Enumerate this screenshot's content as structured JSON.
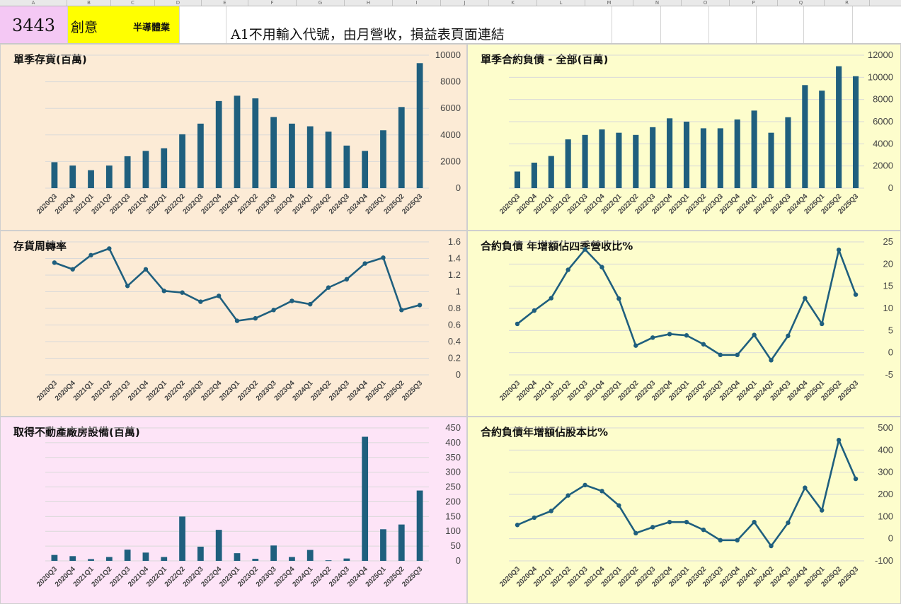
{
  "columns": [
    "A",
    "B",
    "C",
    "D",
    "E",
    "F",
    "G",
    "H",
    "I",
    "J",
    "K",
    "L",
    "M",
    "N",
    "O",
    "P",
    "Q",
    "R"
  ],
  "header": {
    "code": "3443",
    "name": "創意",
    "industry": "半導體業",
    "note": "A1不用輸入代號，由月營收，損益表頁面連結"
  },
  "colors": {
    "series": "#1f5f7e",
    "panel_peach": "#fcebd6",
    "panel_yellow": "#fdfdcc",
    "panel_pink": "#fde4f7",
    "gridline": "#d9d9d9"
  },
  "chart_data": [
    {
      "id": "inventory",
      "type": "bar",
      "title": "單季存貨(百萬)",
      "categories": [
        "2020Q3",
        "2020Q4",
        "2021Q1",
        "2021Q2",
        "2021Q3",
        "2021Q4",
        "2022Q1",
        "2022Q2",
        "2022Q3",
        "2022Q4",
        "2023Q1",
        "2023Q2",
        "2023Q3",
        "2023Q4",
        "2024Q1",
        "2024Q2",
        "2024Q3",
        "2024Q4",
        "2025Q1",
        "2025Q2",
        "2025Q3"
      ],
      "values": [
        1950,
        1700,
        1350,
        1700,
        2400,
        2800,
        3000,
        4050,
        4850,
        6550,
        6950,
        6750,
        5350,
        4850,
        4650,
        4250,
        3200,
        2800,
        4350,
        6100,
        9400
      ],
      "ylim": [
        0,
        10000
      ],
      "yticks": [
        0,
        2000,
        4000,
        6000,
        8000,
        10000
      ],
      "grid": true,
      "y_axis_side": "right"
    },
    {
      "id": "contract_liabilities",
      "type": "bar",
      "title": "單季合約負債 - 全部(百萬)",
      "categories": [
        "2020Q3",
        "2020Q4",
        "2021Q1",
        "2021Q2",
        "2021Q3",
        "2021Q4",
        "2022Q1",
        "2022Q2",
        "2022Q3",
        "2022Q4",
        "2023Q1",
        "2023Q2",
        "2023Q3",
        "2023Q4",
        "2024Q1",
        "2024Q2",
        "2024Q3",
        "2024Q4",
        "2025Q1",
        "2025Q2",
        "2025Q3"
      ],
      "values": [
        1500,
        2300,
        2900,
        4400,
        4800,
        5300,
        5000,
        4800,
        5500,
        6300,
        6000,
        5400,
        5400,
        6200,
        7000,
        5000,
        6400,
        9300,
        8800,
        11000,
        10100
      ],
      "ylim": [
        0,
        12000
      ],
      "yticks": [
        0,
        2000,
        4000,
        6000,
        8000,
        10000,
        12000
      ],
      "grid": true,
      "y_axis_side": "right"
    },
    {
      "id": "inventory_turnover",
      "type": "line",
      "title": "存貨周轉率",
      "categories": [
        "2020Q3",
        "2020Q4",
        "2021Q1",
        "2021Q2",
        "2021Q3",
        "2021Q4",
        "2022Q1",
        "2022Q2",
        "2022Q3",
        "2022Q4",
        "2023Q1",
        "2023Q2",
        "2023Q3",
        "2023Q4",
        "2024Q1",
        "2024Q2",
        "2024Q3",
        "2024Q4",
        "2025Q1",
        "2025Q2",
        "2025Q3"
      ],
      "values": [
        1.35,
        1.27,
        1.44,
        1.52,
        1.07,
        1.27,
        1.01,
        0.99,
        0.88,
        0.95,
        0.65,
        0.68,
        0.78,
        0.89,
        0.85,
        1.05,
        1.15,
        1.34,
        1.41,
        0.78,
        0.84
      ],
      "ylim": [
        0,
        1.6
      ],
      "yticks": [
        "0",
        "0.2",
        "0.4",
        "0.6",
        "0.8",
        "1",
        "1.2",
        "1.4",
        "1.6"
      ],
      "grid": true,
      "y_axis_side": "right"
    },
    {
      "id": "cl_yoy_to_revenue",
      "type": "line",
      "title": "合約負債 年增額佔四季營收比%",
      "categories": [
        "2020Q3",
        "2020Q4",
        "2021Q1",
        "2021Q2",
        "2021Q3",
        "2021Q4",
        "2022Q1",
        "2022Q2",
        "2022Q3",
        "2022Q4",
        "2023Q1",
        "2023Q2",
        "2023Q3",
        "2023Q4",
        "2024Q1",
        "2024Q2",
        "2024Q3",
        "2024Q4",
        "2025Q1",
        "2025Q2",
        "2025Q3"
      ],
      "values": [
        6.5,
        9.5,
        12.3,
        18.7,
        23.3,
        19.3,
        12.2,
        1.6,
        3.4,
        4.2,
        3.9,
        1.9,
        -0.5,
        -0.5,
        4.0,
        -1.7,
        3.8,
        12.3,
        6.5,
        23.2,
        13.1
      ],
      "ylim": [
        -5,
        25
      ],
      "yticks": [
        -5,
        0,
        5,
        10,
        15,
        20,
        25
      ],
      "grid": true,
      "y_axis_side": "right"
    },
    {
      "id": "ppe_acquisition",
      "type": "bar",
      "title": "取得不動產廠房設備(百萬)",
      "categories": [
        "2020Q3",
        "2020Q4",
        "2021Q1",
        "2021Q2",
        "2021Q3",
        "2021Q4",
        "2022Q1",
        "2022Q2",
        "2022Q3",
        "2022Q4",
        "2023Q1",
        "2023Q2",
        "2023Q3",
        "2023Q4",
        "2024Q1",
        "2024Q2",
        "2024Q3",
        "2024Q4",
        "2025Q1",
        "2025Q2",
        "2025Q3"
      ],
      "values": [
        20,
        16,
        6,
        13,
        38,
        28,
        13,
        150,
        48,
        105,
        26,
        7,
        52,
        13,
        37,
        2,
        8,
        420,
        107,
        123,
        238
      ],
      "ylim": [
        0,
        450
      ],
      "yticks": [
        0,
        50,
        100,
        150,
        200,
        250,
        300,
        350,
        400,
        450
      ],
      "grid": true,
      "y_axis_side": "right"
    },
    {
      "id": "cl_yoy_to_capital",
      "type": "line",
      "title": "合約負債年增額佔股本比%",
      "categories": [
        "2020Q3",
        "2020Q4",
        "2021Q1",
        "2021Q2",
        "2021Q3",
        "2021Q4",
        "2022Q1",
        "2022Q2",
        "2022Q3",
        "2022Q4",
        "2023Q1",
        "2023Q2",
        "2023Q3",
        "2023Q4",
        "2024Q1",
        "2024Q2",
        "2024Q3",
        "2024Q4",
        "2025Q1",
        "2025Q2",
        "2025Q3"
      ],
      "values": [
        62,
        95,
        125,
        195,
        242,
        215,
        150,
        25,
        52,
        75,
        75,
        40,
        -7,
        -7,
        75,
        -33,
        72,
        230,
        128,
        445,
        270
      ],
      "ylim": [
        -100,
        500
      ],
      "yticks": [
        -100,
        0,
        100,
        200,
        300,
        400,
        500
      ],
      "grid": true,
      "y_axis_side": "right"
    }
  ]
}
